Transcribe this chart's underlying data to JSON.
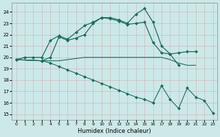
{
  "bg_color": "#cce8e8",
  "grid_color": "#aacccc",
  "line_color": "#1a6b5a",
  "xlabel": "Humidex (Indice chaleur)",
  "xlim": [
    -0.5,
    23.5
  ],
  "ylim": [
    14.5,
    24.8
  ],
  "yticks": [
    15,
    16,
    17,
    18,
    19,
    20,
    21,
    22,
    23,
    24
  ],
  "xticks": [
    0,
    1,
    2,
    3,
    4,
    5,
    6,
    7,
    8,
    9,
    10,
    11,
    12,
    13,
    14,
    15,
    16,
    17,
    18,
    19,
    20,
    21,
    22,
    23
  ],
  "series": [
    {
      "x": [
        0,
        1,
        2,
        3,
        4,
        5,
        6,
        7,
        8,
        9,
        10,
        11,
        12,
        13,
        14,
        15,
        16,
        17,
        18,
        19
      ],
      "y": [
        19.8,
        20.0,
        20.0,
        20.0,
        21.5,
        21.9,
        21.6,
        22.2,
        22.8,
        23.1,
        23.5,
        23.5,
        23.3,
        23.0,
        23.8,
        24.3,
        23.1,
        21.0,
        20.3,
        19.3
      ],
      "marker": "D",
      "markersize": 2.2,
      "linewidth": 0.9
    },
    {
      "x": [
        0,
        3,
        4,
        5,
        6,
        7,
        8,
        9,
        10,
        11,
        12,
        13,
        14,
        15,
        16,
        17,
        18,
        19,
        20,
        21
      ],
      "y": [
        19.8,
        19.7,
        20.0,
        21.8,
        21.5,
        21.7,
        22.0,
        23.0,
        23.5,
        23.4,
        23.2,
        22.9,
        23.0,
        23.1,
        21.3,
        20.4,
        20.3,
        20.4,
        20.5,
        20.5
      ],
      "marker": "D",
      "markersize": 2.2,
      "linewidth": 0.9
    },
    {
      "x": [
        0,
        3,
        4,
        5,
        6,
        7,
        8,
        9,
        10,
        11,
        12,
        13,
        14,
        15,
        16,
        17,
        18,
        19,
        20,
        21
      ],
      "y": [
        19.8,
        19.7,
        19.7,
        19.7,
        19.8,
        19.9,
        20.0,
        20.0,
        20.0,
        20.0,
        20.0,
        20.0,
        20.0,
        20.0,
        20.0,
        20.0,
        19.8,
        19.5,
        19.3,
        19.3
      ],
      "marker": null,
      "markersize": 0,
      "linewidth": 0.8
    },
    {
      "x": [
        0,
        3,
        4,
        5,
        6,
        7,
        8,
        9,
        10,
        11,
        12,
        13,
        14,
        15,
        16,
        17,
        18,
        19,
        20,
        21,
        22,
        23
      ],
      "y": [
        19.8,
        19.7,
        19.5,
        19.2,
        18.9,
        18.6,
        18.3,
        18.0,
        17.7,
        17.4,
        17.1,
        16.8,
        16.5,
        16.3,
        16.0,
        17.5,
        16.3,
        15.5,
        17.3,
        16.5,
        16.2,
        15.1
      ],
      "marker": "D",
      "markersize": 2.2,
      "linewidth": 0.8
    }
  ]
}
